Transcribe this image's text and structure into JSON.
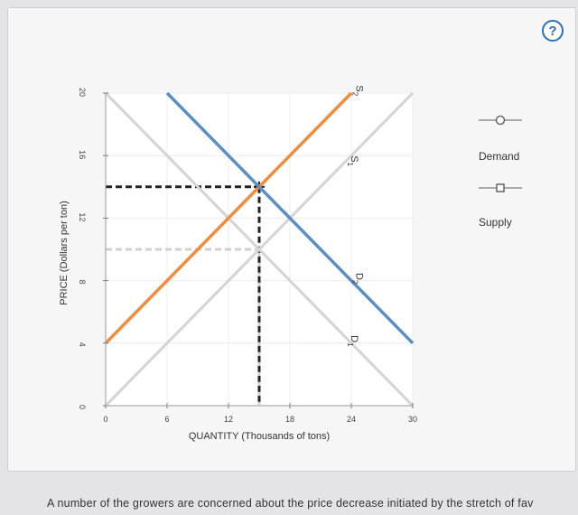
{
  "help": {
    "label": "?"
  },
  "chart_data": {
    "type": "line",
    "title": "",
    "xlabel": "QUANTITY (Thousands of tons)",
    "ylabel": "PRICE (Dollars per ton)",
    "xlim": [
      0,
      30
    ],
    "ylim": [
      0,
      20
    ],
    "xticks": [
      0,
      6,
      12,
      18,
      24,
      30
    ],
    "yticks": [
      0,
      4,
      8,
      12,
      16,
      20
    ],
    "grid": true,
    "series": [
      {
        "name": "S1",
        "color": "#d4d4d4",
        "x": [
          0,
          30
        ],
        "y": [
          0,
          20
        ]
      },
      {
        "name": "D1",
        "color": "#d4d4d4",
        "x": [
          0,
          30
        ],
        "y": [
          20,
          0
        ]
      },
      {
        "name": "S2",
        "color": "#f28c3c",
        "x": [
          0,
          24
        ],
        "y": [
          4,
          20
        ]
      },
      {
        "name": "D2",
        "color": "#5b8ec4",
        "x": [
          6,
          30
        ],
        "y": [
          20,
          4
        ]
      }
    ],
    "curve_labels": [
      {
        "text": "S",
        "sub": "2",
        "x": 24.5,
        "y": 20.5
      },
      {
        "text": "S",
        "sub": "1",
        "x": 24,
        "y": 16
      },
      {
        "text": "D",
        "sub": "2",
        "x": 24.5,
        "y": 8.5
      },
      {
        "text": "D",
        "sub": "1",
        "x": 24,
        "y": 4.5
      }
    ],
    "equilibria": [
      {
        "x": 15,
        "y": 14,
        "color": "#222222",
        "style": "dashed"
      },
      {
        "x": 15,
        "y": 10,
        "color": "#d0d0d0",
        "style": "dashed"
      }
    ],
    "legend": {
      "placement": "right",
      "items": [
        {
          "label": "Demand",
          "marker": "circle"
        },
        {
          "label": "Supply",
          "marker": "square"
        }
      ]
    }
  },
  "footer": {
    "text": "A number of the growers are concerned about the price decrease initiated by the stretch of fav"
  }
}
